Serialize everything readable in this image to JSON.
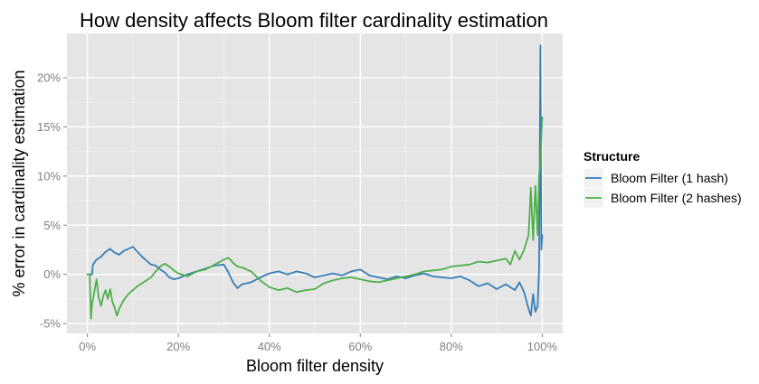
{
  "chart_data": {
    "type": "line",
    "title": "How density affects Bloom filter cardinality estimation",
    "xlabel": "Bloom filter density",
    "ylabel": "% error in cardinality estimation",
    "xlim": [
      -0.045,
      1.045
    ],
    "ylim": [
      -6.0,
      24.5
    ],
    "x_ticks": [
      0,
      0.2,
      0.4,
      0.6,
      0.8,
      1.0
    ],
    "x_tick_labels": [
      "0%",
      "20%",
      "40%",
      "60%",
      "80%",
      "100%"
    ],
    "y_ticks": [
      -5,
      0,
      5,
      10,
      15,
      20
    ],
    "y_tick_labels": [
      "-5%",
      "0%",
      "5%",
      "10%",
      "15%",
      "20%"
    ],
    "grid": true,
    "background": "#e5e5e5",
    "legend": {
      "title": "Structure",
      "position": "right"
    },
    "series": [
      {
        "name": "Bloom Filter (1 hash)",
        "color": "#377eb8",
        "x": [
          0,
          0.01,
          0.012,
          0.02,
          0.03,
          0.04,
          0.05,
          0.06,
          0.07,
          0.08,
          0.09,
          0.1,
          0.11,
          0.12,
          0.13,
          0.14,
          0.15,
          0.16,
          0.17,
          0.18,
          0.19,
          0.2,
          0.22,
          0.24,
          0.26,
          0.28,
          0.3,
          0.31,
          0.32,
          0.33,
          0.34,
          0.36,
          0.38,
          0.4,
          0.42,
          0.44,
          0.46,
          0.48,
          0.5,
          0.52,
          0.54,
          0.56,
          0.58,
          0.6,
          0.62,
          0.64,
          0.66,
          0.68,
          0.7,
          0.72,
          0.74,
          0.76,
          0.78,
          0.8,
          0.82,
          0.84,
          0.86,
          0.88,
          0.9,
          0.92,
          0.94,
          0.95,
          0.96,
          0.97,
          0.975,
          0.98,
          0.985,
          0.99,
          0.993,
          0.996,
          0.998,
          1.0
        ],
        "y": [
          0,
          0,
          1.0,
          1.5,
          1.8,
          2.3,
          2.6,
          2.2,
          2.0,
          2.4,
          2.6,
          2.8,
          2.3,
          1.8,
          1.4,
          1.0,
          0.9,
          0.5,
          0.2,
          -0.3,
          -0.5,
          -0.4,
          0.0,
          0.3,
          0.6,
          0.9,
          1.0,
          0.2,
          -0.8,
          -1.4,
          -1.0,
          -0.8,
          -0.3,
          0.1,
          0.3,
          0.0,
          0.3,
          0.1,
          -0.3,
          -0.1,
          0.1,
          -0.1,
          0.3,
          0.5,
          -0.1,
          -0.3,
          -0.5,
          -0.2,
          -0.4,
          -0.1,
          0.1,
          -0.2,
          -0.3,
          -0.4,
          -0.2,
          -0.6,
          -1.2,
          -0.9,
          -1.5,
          -1.0,
          -1.6,
          -0.8,
          -1.8,
          -3.5,
          -4.2,
          -2.0,
          -3.8,
          -3.2,
          0.5,
          23.3,
          2.5,
          4.0
        ]
      },
      {
        "name": "Bloom Filter (2 hashes)",
        "color": "#4daf4a",
        "x": [
          0,
          0.005,
          0.008,
          0.01,
          0.015,
          0.02,
          0.025,
          0.03,
          0.035,
          0.04,
          0.045,
          0.05,
          0.055,
          0.06,
          0.065,
          0.07,
          0.08,
          0.09,
          0.1,
          0.11,
          0.12,
          0.13,
          0.14,
          0.15,
          0.16,
          0.17,
          0.18,
          0.19,
          0.2,
          0.22,
          0.24,
          0.26,
          0.28,
          0.3,
          0.31,
          0.32,
          0.33,
          0.34,
          0.36,
          0.38,
          0.4,
          0.42,
          0.44,
          0.46,
          0.48,
          0.5,
          0.52,
          0.54,
          0.56,
          0.58,
          0.6,
          0.62,
          0.64,
          0.66,
          0.68,
          0.7,
          0.72,
          0.74,
          0.76,
          0.78,
          0.8,
          0.82,
          0.84,
          0.86,
          0.88,
          0.9,
          0.92,
          0.93,
          0.94,
          0.95,
          0.96,
          0.97,
          0.975,
          0.98,
          0.985,
          0.99,
          0.993,
          0.996,
          1.0
        ],
        "y": [
          0,
          0,
          -4.5,
          -3.0,
          -1.8,
          -0.5,
          -2.4,
          -3.2,
          -2.2,
          -1.6,
          -2.5,
          -1.5,
          -2.8,
          -3.4,
          -4.2,
          -3.5,
          -2.6,
          -2.0,
          -1.6,
          -1.2,
          -0.9,
          -0.6,
          -0.3,
          0.3,
          0.8,
          1.1,
          0.8,
          0.4,
          0.1,
          -0.2,
          0.3,
          0.5,
          1.0,
          1.5,
          1.7,
          1.2,
          0.8,
          0.7,
          0.3,
          -0.6,
          -1.3,
          -1.6,
          -1.4,
          -1.8,
          -1.6,
          -1.5,
          -0.9,
          -0.6,
          -0.4,
          -0.3,
          -0.5,
          -0.7,
          -0.8,
          -0.6,
          -0.4,
          -0.2,
          0.0,
          0.3,
          0.4,
          0.5,
          0.8,
          0.9,
          1.0,
          1.3,
          1.2,
          1.4,
          1.6,
          1.0,
          2.4,
          1.5,
          2.5,
          4.0,
          8.8,
          3.5,
          9.0,
          4.0,
          10.0,
          11.5,
          16.0
        ]
      }
    ]
  }
}
